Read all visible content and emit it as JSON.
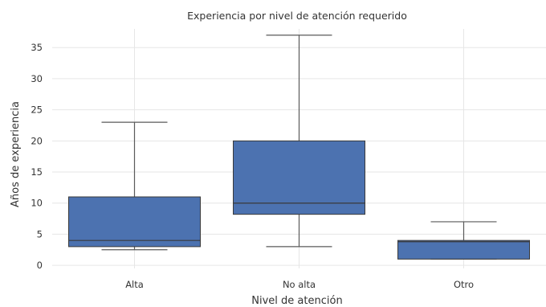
{
  "chart_data": {
    "type": "box",
    "title": "Experiencia por nivel de atención requerido",
    "xlabel": "Nivel de atención",
    "ylabel": "Años de experiencia",
    "ylim": [
      -0.5,
      38
    ],
    "yticks": [
      0,
      5,
      10,
      15,
      20,
      25,
      30,
      35
    ],
    "grid": true,
    "box_color": "#4c72b0",
    "categories": [
      "Alta",
      "No alta",
      "Otro"
    ],
    "boxes": [
      {
        "category": "Alta",
        "whisker_low": 2.5,
        "q1": 3.0,
        "median": 4.0,
        "q3": 11.0,
        "whisker_high": 23.0
      },
      {
        "category": "No alta",
        "whisker_low": 3.0,
        "q1": 8.2,
        "median": 10.0,
        "q3": 20.0,
        "whisker_high": 37.0
      },
      {
        "category": "Otro",
        "whisker_low": 1.0,
        "q1": 1.0,
        "median": 3.8,
        "q3": 4.0,
        "whisker_high": 7.0
      }
    ]
  }
}
